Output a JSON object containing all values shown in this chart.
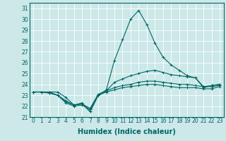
{
  "xlabel": "Humidex (Indice chaleur)",
  "x": [
    0,
    1,
    2,
    3,
    4,
    5,
    6,
    7,
    8,
    9,
    10,
    11,
    12,
    13,
    14,
    15,
    16,
    17,
    18,
    19,
    20,
    21,
    22,
    23
  ],
  "line1": [
    23.3,
    23.3,
    23.3,
    23.3,
    22.8,
    22.1,
    22.3,
    21.5,
    23.0,
    23.5,
    26.2,
    28.1,
    30.0,
    30.8,
    29.5,
    27.8,
    26.5,
    25.8,
    25.3,
    24.8,
    24.6,
    23.7,
    23.9,
    24.0
  ],
  "line2": [
    23.3,
    23.3,
    23.3,
    23.0,
    22.5,
    22.1,
    22.2,
    21.5,
    23.0,
    23.4,
    24.2,
    24.5,
    24.8,
    25.0,
    25.2,
    25.3,
    25.1,
    24.9,
    24.8,
    24.7,
    24.6,
    23.8,
    23.9,
    24.0
  ],
  "line3": [
    23.3,
    23.3,
    23.2,
    23.0,
    22.4,
    22.1,
    22.2,
    21.8,
    23.1,
    23.4,
    23.7,
    23.9,
    24.0,
    24.2,
    24.3,
    24.3,
    24.2,
    24.1,
    24.0,
    24.0,
    23.9,
    23.8,
    23.8,
    23.9
  ],
  "line4": [
    23.3,
    23.3,
    23.2,
    23.0,
    22.3,
    22.0,
    22.1,
    21.7,
    23.0,
    23.3,
    23.5,
    23.7,
    23.8,
    23.9,
    24.0,
    24.0,
    23.9,
    23.8,
    23.7,
    23.7,
    23.7,
    23.6,
    23.6,
    23.8
  ],
  "color": "#006666",
  "bg_color": "#cce8e8",
  "grid_color": "#ffffff",
  "ylim": [
    21,
    31.5
  ],
  "yticks": [
    21,
    22,
    23,
    24,
    25,
    26,
    27,
    28,
    29,
    30,
    31
  ],
  "xticks": [
    0,
    1,
    2,
    3,
    4,
    5,
    6,
    7,
    8,
    9,
    10,
    11,
    12,
    13,
    14,
    15,
    16,
    17,
    18,
    19,
    20,
    21,
    22,
    23
  ],
  "tick_fontsize": 5.5,
  "label_fontsize": 7.0
}
